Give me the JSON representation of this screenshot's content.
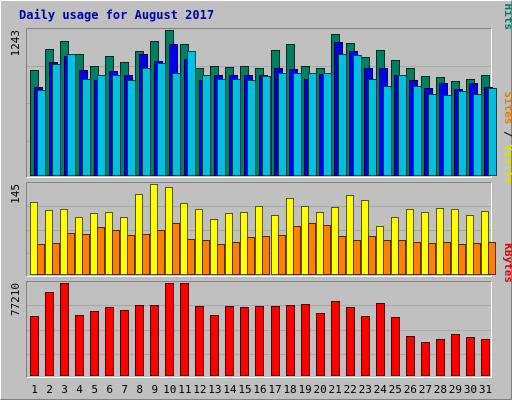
{
  "chart_data": {
    "type": "bar",
    "title": "Daily usage for August 2017",
    "categories": [
      "1",
      "2",
      "3",
      "4",
      "5",
      "6",
      "7",
      "8",
      "9",
      "10",
      "11",
      "12",
      "13",
      "14",
      "15",
      "16",
      "17",
      "18",
      "19",
      "20",
      "21",
      "22",
      "23",
      "24",
      "25",
      "26",
      "27",
      "28",
      "29",
      "30",
      "31"
    ],
    "weekend_days": [
      "5",
      "6",
      "12",
      "13",
      "19",
      "20",
      "26",
      "27"
    ],
    "panels": [
      {
        "id": "hits-files-pages",
        "ymax": 1243,
        "ymax_label": "1243",
        "side_label": [
          {
            "text": "Pages",
            "color": "#00c0e0"
          },
          {
            "text": " / ",
            "color": "#000000"
          },
          {
            "text": "Files",
            "color": "#0000e0"
          },
          {
            "text": " / ",
            "color": "#000000"
          },
          {
            "text": "Hits",
            "color": "#008060"
          }
        ],
        "series": [
          {
            "name": "Hits",
            "color": "#008060",
            "values": [
              900,
              1080,
              1150,
              1040,
              940,
              1020,
              970,
              1060,
              1150,
              1243,
              1120,
              920,
              940,
              930,
              940,
              920,
              1070,
              1120,
              940,
              920,
              1210,
              1130,
              1010,
              1070,
              990,
              920,
              850,
              840,
              810,
              830,
              860
            ]
          },
          {
            "name": "Files",
            "color": "#0000e0",
            "values": [
              760,
              970,
              1020,
              900,
              820,
              890,
              860,
              1040,
              980,
              1120,
              1000,
              820,
              860,
              860,
              860,
              860,
              920,
              910,
              830,
              870,
              1140,
              1060,
              920,
              920,
              860,
              820,
              750,
              790,
              740,
              790,
              760
            ]
          },
          {
            "name": "Pages",
            "color": "#00c0e0",
            "values": [
              730,
              950,
              1040,
              830,
              860,
              860,
              820,
              920,
              960,
              880,
              1060,
              860,
              830,
              830,
              820,
              850,
              880,
              880,
              880,
              880,
              1040,
              1030,
              830,
              770,
              860,
              770,
              700,
              690,
              720,
              700,
              750
            ]
          }
        ]
      },
      {
        "id": "visits-sites",
        "ymax": 145,
        "ymax_label": "145",
        "side_label": [
          {
            "text": "Sites",
            "color": "#e08000"
          },
          {
            "text": " / ",
            "color": "#000000"
          },
          {
            "text": "Visits",
            "color": "#e0e000"
          }
        ],
        "series": [
          {
            "name": "Visits",
            "color": "#ffff00",
            "values": [
              117,
              103,
              105,
              93,
              98,
              100,
              92,
              129,
              145,
              140,
              115,
              105,
              90,
              98,
              100,
              110,
              95,
              123,
              110,
              100,
              108,
              128,
              120,
              78,
              92,
              105,
              100,
              107,
              105,
              95,
              102
            ]
          },
          {
            "name": "Sites",
            "color": "#ff8000",
            "values": [
              50,
              51,
              67,
              66,
              77,
              72,
              64,
              66,
              71,
              83,
              58,
              55,
              50,
              52,
              61,
              62,
              64,
              78,
              83,
              80,
              62,
              56,
              62,
              55,
              55,
              53,
              51,
              52,
              50,
              51,
              52
            ]
          }
        ]
      },
      {
        "id": "kbytes",
        "ymax": 77210,
        "ymax_label": "77210",
        "side_label": [
          {
            "text": "KBytes",
            "color": "#e00000"
          }
        ],
        "series": [
          {
            "name": "KBytes",
            "color": "#ff0000",
            "values": [
              50000,
              70000,
              77210,
              51000,
              54000,
              57000,
              54500,
              59000,
              59000,
              77000,
              77210,
              58000,
              51000,
              58000,
              57000,
              58000,
              58000,
              59000,
              60000,
              52000,
              62000,
              57500,
              49500,
              61000,
              49000,
              33000,
              28000,
              31000,
              35000,
              32000,
              31000
            ]
          }
        ]
      }
    ]
  }
}
